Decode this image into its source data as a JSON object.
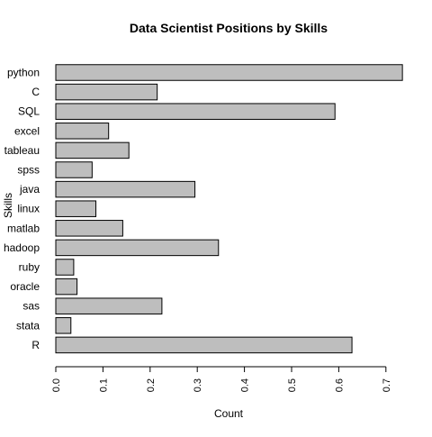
{
  "chart_data": {
    "type": "bar",
    "orientation": "horizontal",
    "title": "Data Scientist Positions by Skills",
    "xlabel": "Count",
    "ylabel": "Skills",
    "categories": [
      "python",
      "C",
      "SQL",
      "excel",
      "tableau",
      "spss",
      "java",
      "linux",
      "matlab",
      "hadoop",
      "ruby",
      "oracle",
      "sas",
      "stata",
      "R"
    ],
    "values": [
      0.735,
      0.215,
      0.592,
      0.112,
      0.155,
      0.077,
      0.295,
      0.085,
      0.142,
      0.345,
      0.038,
      0.045,
      0.225,
      0.032,
      0.628
    ],
    "xlim": [
      0,
      0.7
    ],
    "xticks": [
      0.0,
      0.1,
      0.2,
      0.3,
      0.4,
      0.5,
      0.6,
      0.7
    ],
    "xtick_labels": [
      "0.0",
      "0.1",
      "0.2",
      "0.3",
      "0.4",
      "0.5",
      "0.6",
      "0.7"
    ],
    "bar_color": "#bebebe",
    "bar_edge_color": "#000000",
    "grid": false,
    "legend": "none"
  }
}
